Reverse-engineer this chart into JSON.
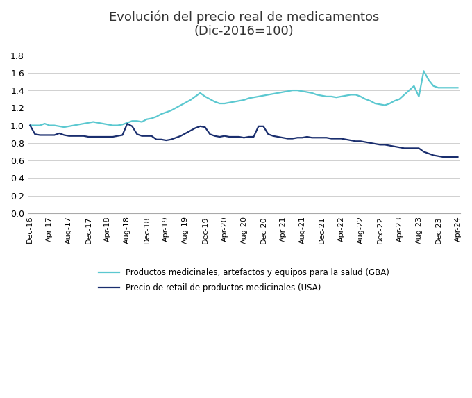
{
  "title": "Evolución del precio real de medicamentos\n(Dic-2016=100)",
  "background_color": "#ffffff",
  "line1_color": "#5bc8d0",
  "line2_color": "#1a2e6e",
  "line1_label": "Productos medicinales, artefactos y equipos para la salud (GBA)",
  "line2_label": "Precio de retail de productos medicinales (USA)",
  "ylim": [
    0,
    1.9
  ],
  "yticks": [
    0,
    0.2,
    0.4,
    0.6,
    0.8,
    1.0,
    1.2,
    1.4,
    1.6,
    1.8
  ],
  "xtick_labels": [
    "Dec-16",
    "Apr-17",
    "Aug-17",
    "Dec-17",
    "Apr-18",
    "Aug-18",
    "Dec-18",
    "Apr-19",
    "Aug-19",
    "Dec-19",
    "Apr-20",
    "Aug-20",
    "Dec-20",
    "Apr-21",
    "Aug-21",
    "Dec-21",
    "Apr-22",
    "Aug-22",
    "Dec-22",
    "Apr-23",
    "Aug-23",
    "Dec-23",
    "Apr-24"
  ],
  "gba_values": [
    1.0,
    1.0,
    1.0,
    1.02,
    1.0,
    1.0,
    0.99,
    0.98,
    0.99,
    1.0,
    1.01,
    1.02,
    1.03,
    1.04,
    1.03,
    1.02,
    1.01,
    1.0,
    1.0,
    1.01,
    1.03,
    1.05,
    1.05,
    1.04,
    1.07,
    1.08,
    1.1,
    1.13,
    1.15,
    1.17,
    1.2,
    1.23,
    1.26,
    1.29,
    1.33,
    1.37,
    1.33,
    1.3,
    1.27,
    1.25,
    1.25,
    1.26,
    1.27,
    1.28,
    1.29,
    1.31,
    1.32,
    1.33,
    1.34,
    1.35,
    1.36,
    1.37,
    1.38,
    1.39,
    1.4,
    1.4,
    1.39,
    1.38,
    1.37,
    1.35,
    1.34,
    1.33,
    1.33,
    1.32,
    1.33,
    1.34,
    1.35,
    1.35,
    1.33,
    1.3,
    1.28,
    1.25,
    1.24,
    1.23,
    1.25,
    1.28,
    1.3,
    1.35,
    1.4,
    1.45,
    1.33,
    1.62,
    1.52,
    1.45,
    1.43,
    1.43,
    1.43,
    1.43,
    1.43
  ],
  "usa_values": [
    1.0,
    0.9,
    0.89,
    0.89,
    0.89,
    0.89,
    0.91,
    0.89,
    0.88,
    0.88,
    0.88,
    0.88,
    0.87,
    0.87,
    0.87,
    0.87,
    0.87,
    0.87,
    0.88,
    0.89,
    1.02,
    0.99,
    0.9,
    0.88,
    0.88,
    0.88,
    0.84,
    0.84,
    0.83,
    0.84,
    0.86,
    0.88,
    0.91,
    0.94,
    0.97,
    0.99,
    0.98,
    0.9,
    0.88,
    0.87,
    0.88,
    0.87,
    0.87,
    0.87,
    0.86,
    0.87,
    0.87,
    0.99,
    0.99,
    0.9,
    0.88,
    0.87,
    0.86,
    0.85,
    0.85,
    0.86,
    0.86,
    0.87,
    0.86,
    0.86,
    0.86,
    0.86,
    0.85,
    0.85,
    0.85,
    0.84,
    0.83,
    0.82,
    0.82,
    0.81,
    0.8,
    0.79,
    0.78,
    0.78,
    0.77,
    0.76,
    0.75,
    0.74,
    0.74,
    0.74,
    0.74,
    0.7,
    0.68,
    0.66,
    0.65,
    0.64,
    0.64,
    0.64,
    0.64
  ]
}
